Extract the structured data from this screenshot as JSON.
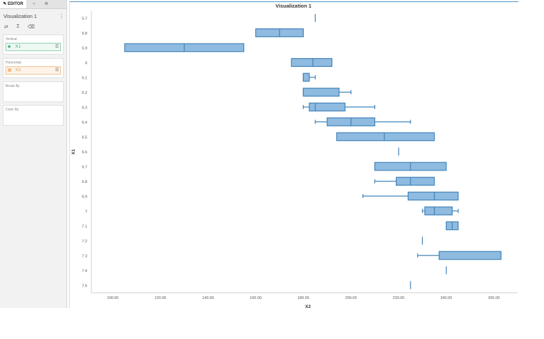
{
  "editor": {
    "tabs": [
      {
        "label": "EDITOR",
        "icon": "pencil-icon"
      },
      {
        "label": "",
        "icon": "filter-icon"
      },
      {
        "label": "",
        "icon": "gear-icon"
      }
    ],
    "viz_title": "Visualization 1",
    "tools": [
      "axis-swap-icon",
      "sum-icon",
      "eraser-icon"
    ],
    "vertical": {
      "label": "Vertical",
      "field": "X1",
      "icon": "dimension-icon",
      "color": "#3fae7a"
    },
    "horizontal": {
      "label": "Horizontal",
      "field": "X2",
      "icon": "measure-icon",
      "color": "#e59b4a"
    },
    "break_by": {
      "label": "Break By"
    },
    "color_by": {
      "label": "Color By"
    }
  },
  "colors": {
    "box_fill": "#8fbbe0",
    "box_stroke": "#3f82b8",
    "accent": "#4a90c8"
  },
  "chart_data": {
    "type": "boxplot",
    "orientation": "horizontal",
    "title": "Visualization 1",
    "xlabel": "X2",
    "ylabel": "X1",
    "xlim": [
      91,
      270
    ],
    "x_ticks": [
      100,
      120,
      140,
      160,
      180,
      200,
      220,
      240,
      260
    ],
    "x_tick_labels": [
      "100.00",
      "120.00",
      "140.00",
      "160.00",
      "180.00",
      "200.00",
      "220.00",
      "240.00",
      "260.00"
    ],
    "grid": false,
    "categories": [
      "5.7",
      "5.8",
      "5.9",
      "6",
      "6.1",
      "6.2",
      "6.3",
      "6.4",
      "6.5",
      "6.6",
      "6.7",
      "6.8",
      "6.9",
      "7",
      "7.1",
      "7.2",
      "7.3",
      "7.4",
      "7.6"
    ],
    "boxes": [
      {
        "category": "5.7",
        "min": 185,
        "q1": 185,
        "median": 185,
        "q3": 185,
        "max": 185
      },
      {
        "category": "5.8",
        "min": 160,
        "q1": 160,
        "median": 170,
        "q3": 180,
        "max": 180
      },
      {
        "category": "5.9",
        "min": 105,
        "q1": 105,
        "median": 130,
        "q3": 155,
        "max": 155
      },
      {
        "category": "6",
        "min": 175,
        "q1": 175,
        "median": 184,
        "q3": 192,
        "max": 192
      },
      {
        "category": "6.1",
        "min": 180,
        "q1": 180,
        "median": 180,
        "q3": 182.5,
        "max": 185
      },
      {
        "category": "6.2",
        "min": 180,
        "q1": 180,
        "median": 180,
        "q3": 195,
        "max": 200
      },
      {
        "category": "6.3",
        "min": 180,
        "q1": 182.5,
        "median": 185,
        "q3": 197.5,
        "max": 210
      },
      {
        "category": "6.4",
        "min": 185,
        "q1": 190,
        "median": 200,
        "q3": 210,
        "max": 225
      },
      {
        "category": "6.5",
        "min": 194,
        "q1": 194,
        "median": 214,
        "q3": 235,
        "max": 235
      },
      {
        "category": "6.6",
        "min": 220,
        "q1": 220,
        "median": 220,
        "q3": 220,
        "max": 220
      },
      {
        "category": "6.7",
        "min": 210,
        "q1": 210,
        "median": 225,
        "q3": 240,
        "max": 240
      },
      {
        "category": "6.8",
        "min": 210,
        "q1": 219,
        "median": 225,
        "q3": 235,
        "max": 235
      },
      {
        "category": "6.9",
        "min": 205,
        "q1": 224,
        "median": 235,
        "q3": 245,
        "max": 245
      },
      {
        "category": "7",
        "min": 230,
        "q1": 231,
        "median": 235,
        "q3": 242.5,
        "max": 245
      },
      {
        "category": "7.1",
        "min": 240,
        "q1": 240,
        "median": 242.5,
        "q3": 245,
        "max": 245
      },
      {
        "category": "7.2",
        "min": 230,
        "q1": 230,
        "median": 230,
        "q3": 230,
        "max": 230
      },
      {
        "category": "7.3",
        "min": 228,
        "q1": 237,
        "median": 263,
        "q3": 263,
        "max": 263
      },
      {
        "category": "7.4",
        "min": 240,
        "q1": 240,
        "median": 240,
        "q3": 240,
        "max": 240
      },
      {
        "category": "7.6",
        "min": 225,
        "q1": 225,
        "median": 225,
        "q3": 225,
        "max": 225
      }
    ]
  }
}
